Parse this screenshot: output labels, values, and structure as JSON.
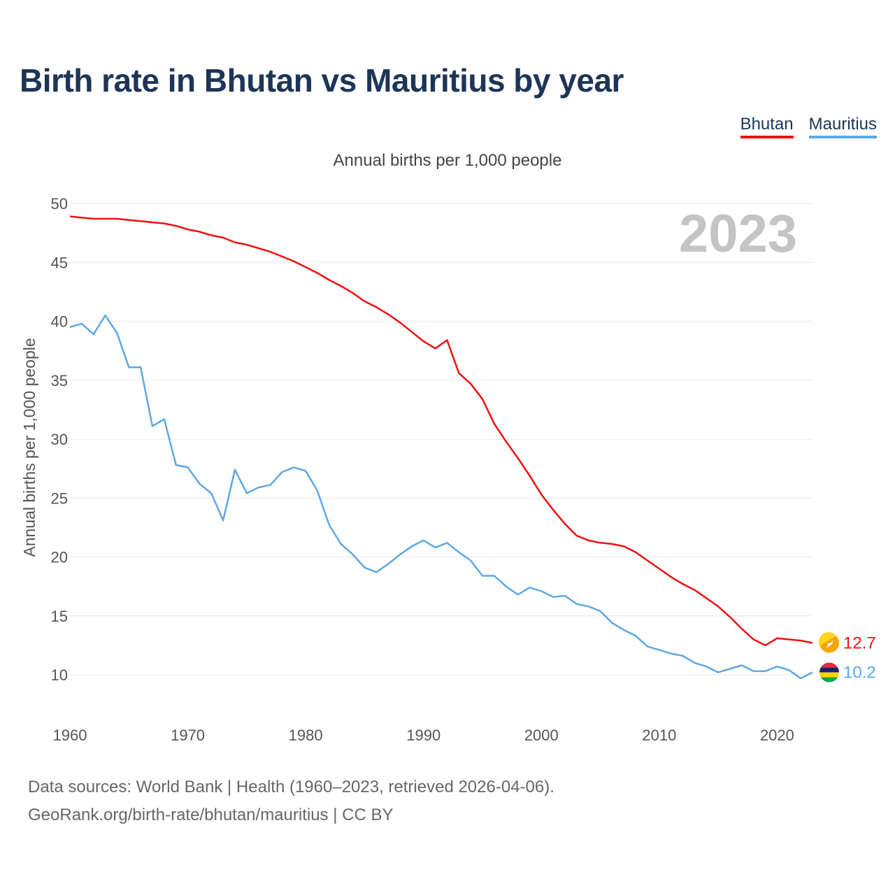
{
  "title": "Birth rate in Bhutan vs Mauritius by year",
  "subtitle": "Annual births per 1,000 people",
  "legend": [
    {
      "name": "Bhutan",
      "color": "#ee1111"
    },
    {
      "name": "Mauritius",
      "color": "#5ea8e4"
    }
  ],
  "year_watermark": "2023",
  "source": {
    "line1": "Data sources: World Bank | Health (1960–2023, retrieved 2026-04-06).",
    "line2": "GeoRank.org/birth-rate/bhutan/mauritius | CC BY"
  },
  "chart_data": {
    "type": "line",
    "title": "Birth rate in Bhutan vs Mauritius by year",
    "subtitle": "Annual births per 1,000 people",
    "xlabel": "",
    "ylabel": "Annual births per 1,000 people",
    "xlim": [
      1960,
      2023
    ],
    "ylim": [
      7,
      50
    ],
    "x_ticks": [
      "1960",
      "1970",
      "1980",
      "1990",
      "2000",
      "2010",
      "2020"
    ],
    "y_ticks": [
      "10",
      "15",
      "20",
      "25",
      "30",
      "35",
      "40",
      "45",
      "50"
    ],
    "grid": true,
    "legend_position": "top-right",
    "x": [
      1960,
      1961,
      1962,
      1963,
      1964,
      1965,
      1966,
      1967,
      1968,
      1969,
      1970,
      1971,
      1972,
      1973,
      1974,
      1975,
      1976,
      1977,
      1978,
      1979,
      1980,
      1981,
      1982,
      1983,
      1984,
      1985,
      1986,
      1987,
      1988,
      1989,
      1990,
      1991,
      1992,
      1993,
      1994,
      1995,
      1996,
      1997,
      1998,
      1999,
      2000,
      2001,
      2002,
      2003,
      2004,
      2005,
      2006,
      2007,
      2008,
      2009,
      2010,
      2011,
      2012,
      2013,
      2014,
      2015,
      2016,
      2017,
      2018,
      2019,
      2020,
      2021,
      2022,
      2023
    ],
    "series": [
      {
        "name": "Bhutan",
        "color": "#ee1111",
        "end_label": "12.7",
        "values": [
          48.9,
          48.8,
          48.7,
          48.7,
          48.7,
          48.6,
          48.5,
          48.4,
          48.3,
          48.1,
          47.8,
          47.6,
          47.3,
          47.1,
          46.7,
          46.5,
          46.2,
          45.9,
          45.5,
          45.1,
          44.6,
          44.1,
          43.5,
          43.0,
          42.4,
          41.7,
          41.2,
          40.6,
          39.9,
          39.1,
          38.3,
          37.7,
          38.4,
          35.6,
          34.7,
          33.4,
          31.3,
          29.8,
          28.4,
          26.9,
          25.3,
          24.0,
          22.8,
          21.8,
          21.4,
          21.2,
          21.1,
          20.9,
          20.4,
          19.7,
          19.0,
          18.3,
          17.7,
          17.2,
          16.5,
          15.8,
          14.9,
          13.9,
          13.0,
          12.5,
          13.1,
          13.0,
          12.9,
          12.7
        ]
      },
      {
        "name": "Mauritius",
        "color": "#5ea8e4",
        "end_label": "10.2",
        "values": [
          39.5,
          39.8,
          38.9,
          40.5,
          39.0,
          36.1,
          36.1,
          31.1,
          31.7,
          27.8,
          27.6,
          26.2,
          25.4,
          23.1,
          27.4,
          25.4,
          25.9,
          26.1,
          27.2,
          27.6,
          27.3,
          25.6,
          22.7,
          21.1,
          20.2,
          19.1,
          18.7,
          19.4,
          20.2,
          20.9,
          21.4,
          20.8,
          21.2,
          20.4,
          19.7,
          18.4,
          18.4,
          17.5,
          16.8,
          17.4,
          17.1,
          16.6,
          16.7,
          16.0,
          15.8,
          15.4,
          14.4,
          13.8,
          13.3,
          12.4,
          12.1,
          11.8,
          11.6,
          11.0,
          10.7,
          10.2,
          10.5,
          10.8,
          10.3,
          10.3,
          10.7,
          10.4,
          9.7,
          10.2
        ]
      }
    ]
  }
}
